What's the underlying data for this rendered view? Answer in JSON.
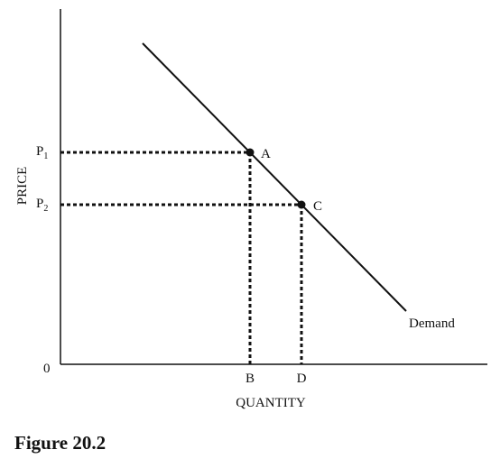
{
  "axes": {
    "y_label": "PRICE",
    "x_label": "QUANTITY",
    "origin_label": "0"
  },
  "prices": {
    "p1": {
      "base": "P",
      "sub": "1"
    },
    "p2": {
      "base": "P",
      "sub": "2"
    }
  },
  "quantities": {
    "q_b": "B",
    "q_d": "D"
  },
  "points": {
    "a": "A",
    "c": "C"
  },
  "curve": {
    "label": "Demand"
  },
  "caption": "Figure 20.2"
}
